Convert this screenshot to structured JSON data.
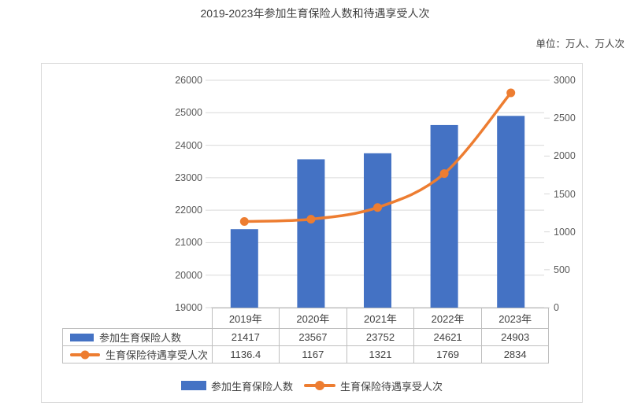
{
  "title": "2019-2023年参加生育保险人数和待遇享受人次",
  "unit_label": "单位：万人、万人次",
  "colors": {
    "bar": "#4472C4",
    "line": "#ED7D31",
    "grid": "#d9d9d9",
    "axis_line": "#bfbfbf",
    "table_border": "#bfbfbf",
    "text": "#404040",
    "axis_text": "#595959"
  },
  "chart_data": {
    "type": "combo",
    "categories": [
      "2019年",
      "2020年",
      "2021年",
      "2022年",
      "2023年"
    ],
    "series": [
      {
        "name": "参加生育保险人数",
        "type": "bar",
        "axis": "left",
        "color": "#4472C4",
        "values": [
          21417,
          23567,
          23752,
          24621,
          24903
        ]
      },
      {
        "name": "生育保险待遇享受人次",
        "type": "line",
        "axis": "right",
        "color": "#ED7D31",
        "values": [
          1136.4,
          1167,
          1321,
          1769,
          2834
        ]
      }
    ],
    "left_axis": {
      "min": 19000,
      "max": 26000,
      "step": 1000,
      "ticks": [
        "19000",
        "20000",
        "21000",
        "22000",
        "23000",
        "24000",
        "25000",
        "26000"
      ]
    },
    "right_axis": {
      "min": 0,
      "max": 3000,
      "step": 500,
      "ticks": [
        "0",
        "500",
        "1000",
        "1500",
        "2000",
        "2500",
        "3000"
      ]
    },
    "grid": true,
    "legend_position": "bottom"
  },
  "data_table": {
    "header": [
      "2019年",
      "2020年",
      "2021年",
      "2022年",
      "2023年"
    ],
    "rows": [
      {
        "label": "参加生育保险人数",
        "key": "bar",
        "values": [
          "21417",
          "23567",
          "23752",
          "24621",
          "24903"
        ]
      },
      {
        "label": "生育保险待遇享受人次",
        "key": "line",
        "values": [
          "1136.4",
          "1167",
          "1321",
          "1769",
          "2834"
        ]
      }
    ]
  },
  "legend": {
    "items": [
      {
        "label": "参加生育保险人数",
        "type": "bar",
        "color": "#4472C4"
      },
      {
        "label": "生育保险待遇享受人次",
        "type": "line",
        "color": "#ED7D31"
      }
    ]
  }
}
